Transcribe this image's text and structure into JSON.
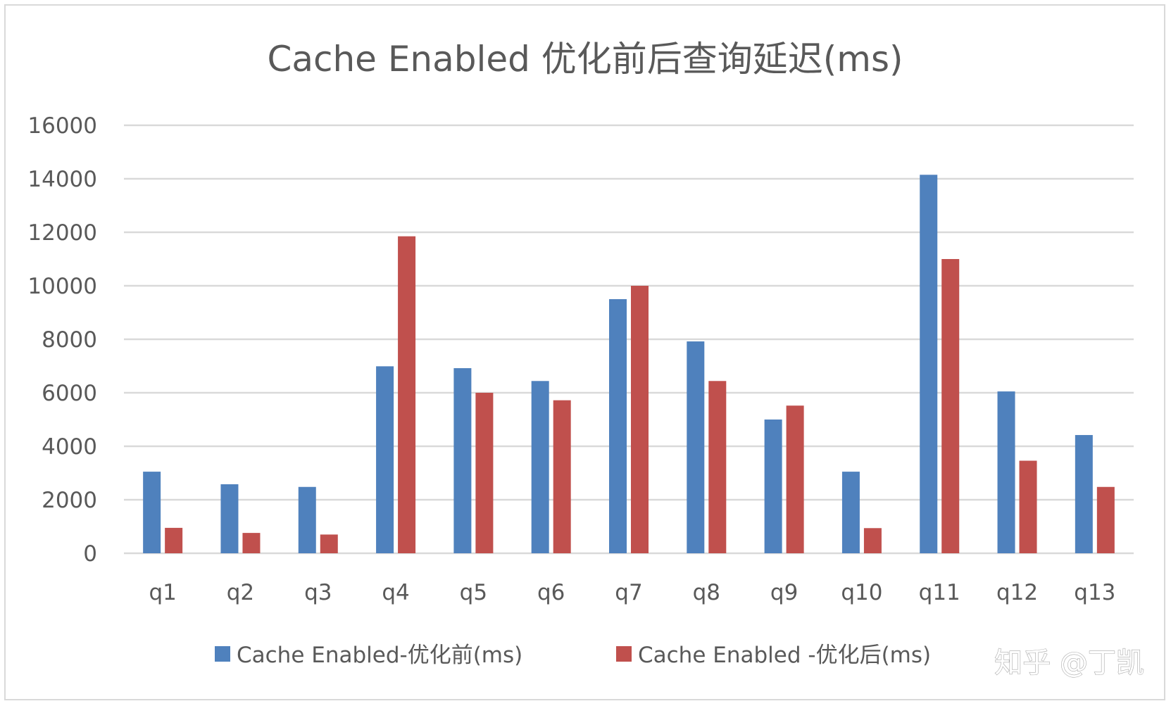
{
  "chart_data": {
    "type": "bar",
    "title": "Cache Enabled 优化前后查询延迟(ms)",
    "categories": [
      "q1",
      "q2",
      "q3",
      "q4",
      "q5",
      "q6",
      "q7",
      "q8",
      "q9",
      "q10",
      "q11",
      "q12",
      "q13"
    ],
    "series": [
      {
        "name": "Cache Enabled-优化前(ms)",
        "color": "#4f81bd",
        "values": [
          3050,
          2580,
          2480,
          6990,
          6920,
          6440,
          9500,
          7920,
          5000,
          3050,
          14150,
          6050,
          4420
        ]
      },
      {
        "name": "Cache Enabled -优化后(ms)",
        "color": "#c0504d",
        "values": [
          950,
          760,
          700,
          11850,
          6000,
          5720,
          10000,
          6440,
          5520,
          940,
          11000,
          3460,
          2480
        ]
      }
    ],
    "yticks": [
      "0",
      "2000",
      "4000",
      "6000",
      "8000",
      "10000",
      "12000",
      "14000",
      "16000"
    ],
    "ylim": [
      0,
      16000
    ],
    "grid": true,
    "legend_position": "bottom"
  },
  "watermark": "知乎 @丁凯"
}
